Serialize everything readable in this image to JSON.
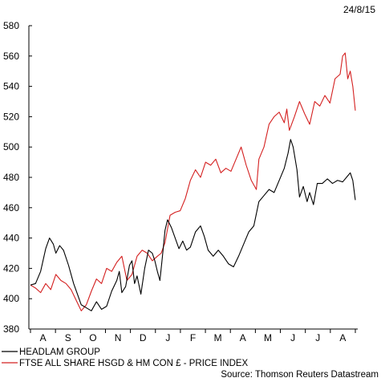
{
  "date_label": "24/8/15",
  "source": "Source: Thomson Reuters Datastream",
  "colors": {
    "axis": "#000000",
    "headlam": "#000000",
    "ftse": "#d42020"
  },
  "chart_data": {
    "type": "line",
    "title": "",
    "xlabel": "",
    "ylabel": "",
    "ylim": [
      380,
      580
    ],
    "yticks": [
      380,
      400,
      420,
      440,
      460,
      480,
      500,
      520,
      540,
      560,
      580
    ],
    "grid": false,
    "legend_position": "bottom-left",
    "x_tick_labels": [
      "A",
      "S",
      "O",
      "N",
      "D",
      "J",
      "F",
      "M",
      "A",
      "M",
      "J",
      "J",
      "A"
    ],
    "x_range": [
      0,
      12.8
    ],
    "series": [
      {
        "name": "HEADLAM GROUP",
        "color": "#000000",
        "points": [
          [
            0.0,
            409
          ],
          [
            0.2,
            410
          ],
          [
            0.4,
            418
          ],
          [
            0.6,
            433
          ],
          [
            0.75,
            440
          ],
          [
            0.9,
            436
          ],
          [
            1.0,
            430
          ],
          [
            1.15,
            435
          ],
          [
            1.3,
            432
          ],
          [
            1.5,
            422
          ],
          [
            1.7,
            410
          ],
          [
            1.85,
            403
          ],
          [
            2.0,
            396
          ],
          [
            2.2,
            394
          ],
          [
            2.4,
            392
          ],
          [
            2.6,
            398
          ],
          [
            2.8,
            393
          ],
          [
            3.0,
            395
          ],
          [
            3.2,
            405
          ],
          [
            3.4,
            412
          ],
          [
            3.5,
            418
          ],
          [
            3.6,
            404
          ],
          [
            3.75,
            408
          ],
          [
            3.9,
            422
          ],
          [
            4.0,
            425
          ],
          [
            4.1,
            410
          ],
          [
            4.2,
            415
          ],
          [
            4.35,
            403
          ],
          [
            4.5,
            420
          ],
          [
            4.65,
            432
          ],
          [
            4.8,
            430
          ],
          [
            4.9,
            425
          ],
          [
            5.0,
            418
          ],
          [
            5.1,
            412
          ],
          [
            5.2,
            428
          ],
          [
            5.3,
            445
          ],
          [
            5.4,
            452
          ],
          [
            5.55,
            447
          ],
          [
            5.7,
            440
          ],
          [
            5.85,
            433
          ],
          [
            6.0,
            438
          ],
          [
            6.15,
            432
          ],
          [
            6.3,
            434
          ],
          [
            6.5,
            444
          ],
          [
            6.7,
            448
          ],
          [
            6.85,
            441
          ],
          [
            7.0,
            432
          ],
          [
            7.2,
            428
          ],
          [
            7.4,
            432
          ],
          [
            7.6,
            428
          ],
          [
            7.8,
            423
          ],
          [
            8.0,
            421
          ],
          [
            8.2,
            428
          ],
          [
            8.4,
            436
          ],
          [
            8.6,
            444
          ],
          [
            8.8,
            448
          ],
          [
            9.0,
            464
          ],
          [
            9.2,
            468
          ],
          [
            9.4,
            472
          ],
          [
            9.6,
            470
          ],
          [
            9.8,
            478
          ],
          [
            10.0,
            486
          ],
          [
            10.15,
            496
          ],
          [
            10.25,
            505
          ],
          [
            10.35,
            500
          ],
          [
            10.5,
            485
          ],
          [
            10.6,
            467
          ],
          [
            10.75,
            474
          ],
          [
            10.9,
            464
          ],
          [
            11.0,
            470
          ],
          [
            11.15,
            462
          ],
          [
            11.3,
            476
          ],
          [
            11.5,
            476
          ],
          [
            11.7,
            479
          ],
          [
            11.9,
            476
          ],
          [
            12.1,
            478
          ],
          [
            12.3,
            477
          ],
          [
            12.5,
            481
          ],
          [
            12.6,
            483
          ],
          [
            12.7,
            478
          ],
          [
            12.8,
            465
          ]
        ]
      },
      {
        "name": "FTSE ALL SHARE HSGD & HM CON £ - PRICE INDEX",
        "color": "#d42020",
        "points": [
          [
            0.0,
            409
          ],
          [
            0.2,
            407
          ],
          [
            0.4,
            404
          ],
          [
            0.6,
            410
          ],
          [
            0.8,
            406
          ],
          [
            1.0,
            416
          ],
          [
            1.2,
            412
          ],
          [
            1.4,
            410
          ],
          [
            1.6,
            406
          ],
          [
            1.8,
            399
          ],
          [
            2.0,
            392
          ],
          [
            2.2,
            396
          ],
          [
            2.4,
            405
          ],
          [
            2.6,
            413
          ],
          [
            2.8,
            410
          ],
          [
            3.0,
            420
          ],
          [
            3.2,
            418
          ],
          [
            3.4,
            424
          ],
          [
            3.6,
            428
          ],
          [
            3.8,
            412
          ],
          [
            4.0,
            416
          ],
          [
            4.2,
            428
          ],
          [
            4.4,
            432
          ],
          [
            4.6,
            430
          ],
          [
            4.8,
            425
          ],
          [
            5.0,
            428
          ],
          [
            5.15,
            430
          ],
          [
            5.3,
            437
          ],
          [
            5.5,
            455
          ],
          [
            5.7,
            457
          ],
          [
            5.9,
            458
          ],
          [
            6.1,
            466
          ],
          [
            6.3,
            478
          ],
          [
            6.5,
            485
          ],
          [
            6.7,
            480
          ],
          [
            6.9,
            490
          ],
          [
            7.1,
            488
          ],
          [
            7.3,
            492
          ],
          [
            7.5,
            483
          ],
          [
            7.7,
            486
          ],
          [
            7.9,
            484
          ],
          [
            8.1,
            492
          ],
          [
            8.3,
            500
          ],
          [
            8.5,
            488
          ],
          [
            8.7,
            478
          ],
          [
            8.9,
            472
          ],
          [
            9.0,
            492
          ],
          [
            9.2,
            500
          ],
          [
            9.4,
            515
          ],
          [
            9.6,
            520
          ],
          [
            9.8,
            523
          ],
          [
            10.0,
            516
          ],
          [
            10.1,
            525
          ],
          [
            10.2,
            511
          ],
          [
            10.4,
            520
          ],
          [
            10.6,
            530
          ],
          [
            10.8,
            522
          ],
          [
            11.0,
            515
          ],
          [
            11.2,
            530
          ],
          [
            11.4,
            527
          ],
          [
            11.6,
            534
          ],
          [
            11.8,
            529
          ],
          [
            12.0,
            545
          ],
          [
            12.2,
            548
          ],
          [
            12.3,
            560
          ],
          [
            12.4,
            562
          ],
          [
            12.5,
            545
          ],
          [
            12.6,
            550
          ],
          [
            12.7,
            540
          ],
          [
            12.8,
            524
          ]
        ]
      }
    ]
  }
}
